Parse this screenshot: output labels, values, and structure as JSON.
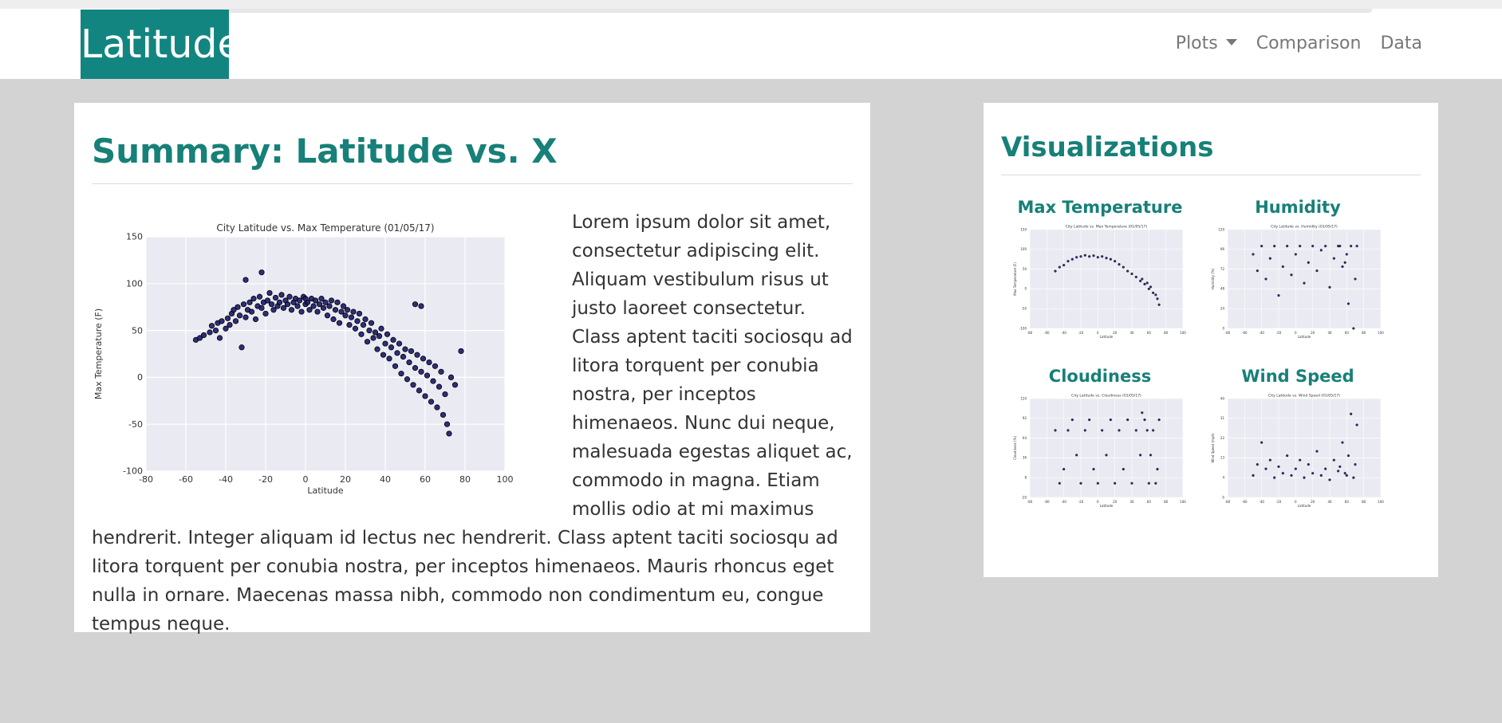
{
  "nav": {
    "brand": "Latitude",
    "items": [
      {
        "label": "Plots",
        "dropdown": true
      },
      {
        "label": "Comparison"
      },
      {
        "label": "Data"
      }
    ]
  },
  "summary": {
    "title": "Summary: Latitude vs. X",
    "paragraph": "Lorem ipsum dolor sit amet, consectetur adipiscing elit. Aliquam vestibulum risus ut justo laoreet consectetur. Class aptent taciti sociosqu ad litora torquent per conubia nostra, per inceptos himenaeos. Nunc dui neque, malesuada egestas aliquet ac, commodo in magna. Etiam mollis odio at mi maximus hendrerit. Integer aliquam id lectus nec hendrerit. Class aptent taciti sociosqu ad litora torquent per conubia nostra, per inceptos himenaeos. Mauris rhoncus eget nulla in ornare. Maecenas massa nibh, commodo non condimentum eu, congue tempus neque."
  },
  "visualizations": {
    "title": "Visualizations",
    "items": [
      {
        "label": "Max Temperature"
      },
      {
        "label": "Humidity"
      },
      {
        "label": "Cloudiness"
      },
      {
        "label": "Wind Speed"
      }
    ]
  },
  "colors": {
    "accent": "#178078",
    "brand_bg": "#138580",
    "dot": "#1a1a6e",
    "plot_bg": "#eaeaf2"
  },
  "chart_data": [
    {
      "type": "scatter",
      "title": "City Latitude vs. Max Temperature (01/05/17)",
      "xlabel": "Latitude",
      "ylabel": "Max Temperature (F)",
      "xlim": [
        -80,
        100
      ],
      "ylim": [
        -100,
        150
      ],
      "xticks": [
        -80,
        -60,
        -40,
        -20,
        0,
        20,
        40,
        60,
        80,
        100
      ],
      "yticks": [
        -100,
        -50,
        0,
        50,
        100,
        150
      ],
      "grid": true,
      "points": [
        [
          -55,
          40
        ],
        [
          -53,
          42
        ],
        [
          -51,
          45
        ],
        [
          -48,
          48
        ],
        [
          -47,
          55
        ],
        [
          -45,
          50
        ],
        [
          -44,
          58
        ],
        [
          -43,
          42
        ],
        [
          -42,
          60
        ],
        [
          -40,
          52
        ],
        [
          -39,
          63
        ],
        [
          -38,
          56
        ],
        [
          -37,
          68
        ],
        [
          -36,
          72
        ],
        [
          -35,
          60
        ],
        [
          -34,
          75
        ],
        [
          -33,
          66
        ],
        [
          -32,
          32
        ],
        [
          -31,
          78
        ],
        [
          -30,
          64
        ],
        [
          -29,
          72
        ],
        [
          -28,
          80
        ],
        [
          -27,
          70
        ],
        [
          -26,
          84
        ],
        [
          -25,
          62
        ],
        [
          -24,
          76
        ],
        [
          -23,
          86
        ],
        [
          -22,
          74
        ],
        [
          -21,
          80
        ],
        [
          -20,
          68
        ],
        [
          -19,
          82
        ],
        [
          -18,
          90
        ],
        [
          -17,
          78
        ],
        [
          -16,
          72
        ],
        [
          -15,
          85
        ],
        [
          -14,
          76
        ],
        [
          -13,
          80
        ],
        [
          -12,
          88
        ],
        [
          -11,
          74
        ],
        [
          -10,
          82
        ],
        [
          -9,
          78
        ],
        [
          -8,
          86
        ],
        [
          -7,
          72
        ],
        [
          -6,
          80
        ],
        [
          -5,
          84
        ],
        [
          -4,
          76
        ],
        [
          -3,
          82
        ],
        [
          -2,
          70
        ],
        [
          -1,
          86
        ],
        [
          0,
          78
        ],
        [
          1,
          80
        ],
        [
          2,
          72
        ],
        [
          3,
          84
        ],
        [
          4,
          76
        ],
        [
          5,
          82
        ],
        [
          6,
          70
        ],
        [
          7,
          78
        ],
        [
          8,
          84
        ],
        [
          9,
          74
        ],
        [
          10,
          80
        ],
        [
          11,
          66
        ],
        [
          12,
          76
        ],
        [
          13,
          82
        ],
        [
          14,
          62
        ],
        [
          15,
          72
        ],
        [
          16,
          80
        ],
        [
          17,
          58
        ],
        [
          18,
          70
        ],
        [
          19,
          76
        ],
        [
          20,
          66
        ],
        [
          21,
          72
        ],
        [
          22,
          56
        ],
        [
          23,
          64
        ],
        [
          24,
          70
        ],
        [
          25,
          52
        ],
        [
          26,
          60
        ],
        [
          27,
          68
        ],
        [
          28,
          46
        ],
        [
          29,
          56
        ],
        [
          30,
          62
        ],
        [
          31,
          38
        ],
        [
          32,
          50
        ],
        [
          33,
          58
        ],
        [
          34,
          42
        ],
        [
          35,
          48
        ],
        [
          36,
          30
        ],
        [
          37,
          44
        ],
        [
          38,
          52
        ],
        [
          39,
          24
        ],
        [
          40,
          36
        ],
        [
          41,
          46
        ],
        [
          42,
          20
        ],
        [
          43,
          32
        ],
        [
          44,
          40
        ],
        [
          45,
          12
        ],
        [
          46,
          26
        ],
        [
          47,
          36
        ],
        [
          48,
          4
        ],
        [
          49,
          22
        ],
        [
          50,
          30
        ],
        [
          51,
          -2
        ],
        [
          52,
          16
        ],
        [
          53,
          28
        ],
        [
          54,
          -8
        ],
        [
          55,
          10
        ],
        [
          56,
          24
        ],
        [
          57,
          -14
        ],
        [
          58,
          6
        ],
        [
          59,
          20
        ],
        [
          60,
          -20
        ],
        [
          61,
          2
        ],
        [
          62,
          16
        ],
        [
          63,
          -26
        ],
        [
          64,
          -4
        ],
        [
          65,
          12
        ],
        [
          66,
          -32
        ],
        [
          67,
          -10
        ],
        [
          68,
          6
        ],
        [
          69,
          -40
        ],
        [
          70,
          -18
        ],
        [
          71,
          -50
        ],
        [
          72,
          -60
        ],
        [
          73,
          0
        ],
        [
          75,
          -8
        ],
        [
          78,
          28
        ],
        [
          55,
          78
        ],
        [
          58,
          76
        ],
        [
          -22,
          112
        ],
        [
          -30,
          104
        ],
        [
          0,
          84
        ]
      ]
    },
    {
      "type": "scatter",
      "title": "City Latitude vs. Max Temperature (01/05/17)",
      "xlabel": "Latitude",
      "ylabel": "Max Temperature (F)",
      "xlim": [
        -80,
        100
      ],
      "ylim": [
        -100,
        150
      ],
      "grid": true,
      "points": [
        [
          -50,
          45
        ],
        [
          -45,
          55
        ],
        [
          -40,
          60
        ],
        [
          -35,
          70
        ],
        [
          -30,
          75
        ],
        [
          -25,
          80
        ],
        [
          -20,
          82
        ],
        [
          -15,
          85
        ],
        [
          -10,
          82
        ],
        [
          -5,
          84
        ],
        [
          0,
          80
        ],
        [
          5,
          82
        ],
        [
          10,
          78
        ],
        [
          15,
          75
        ],
        [
          20,
          70
        ],
        [
          25,
          62
        ],
        [
          30,
          55
        ],
        [
          35,
          45
        ],
        [
          40,
          38
        ],
        [
          45,
          30
        ],
        [
          50,
          20
        ],
        [
          55,
          12
        ],
        [
          60,
          0
        ],
        [
          65,
          -10
        ],
        [
          70,
          -25
        ],
        [
          72,
          -40
        ],
        [
          68,
          -15
        ],
        [
          62,
          5
        ],
        [
          58,
          15
        ],
        [
          52,
          25
        ]
      ]
    },
    {
      "type": "scatter",
      "title": "City Latitude vs. Humidity (01/05/17)",
      "xlabel": "Latitude",
      "ylabel": "Humidity (%)",
      "xlim": [
        -80,
        100
      ],
      "ylim": [
        0,
        120
      ],
      "grid": true,
      "points": [
        [
          -50,
          90
        ],
        [
          -45,
          70
        ],
        [
          -40,
          100
        ],
        [
          -35,
          60
        ],
        [
          -30,
          85
        ],
        [
          -25,
          100
        ],
        [
          -20,
          40
        ],
        [
          -15,
          75
        ],
        [
          -10,
          100
        ],
        [
          -5,
          65
        ],
        [
          0,
          90
        ],
        [
          5,
          100
        ],
        [
          10,
          55
        ],
        [
          15,
          80
        ],
        [
          20,
          100
        ],
        [
          25,
          70
        ],
        [
          30,
          95
        ],
        [
          35,
          100
        ],
        [
          40,
          50
        ],
        [
          45,
          85
        ],
        [
          50,
          100
        ],
        [
          55,
          75
        ],
        [
          60,
          90
        ],
        [
          65,
          100
        ],
        [
          70,
          60
        ],
        [
          72,
          100
        ],
        [
          68,
          0
        ],
        [
          62,
          30
        ],
        [
          58,
          80
        ],
        [
          52,
          100
        ]
      ]
    },
    {
      "type": "scatter",
      "title": "City Latitude vs. Cloudiness (01/05/17)",
      "xlabel": "Latitude",
      "ylabel": "Cloudiness (%)",
      "xlim": [
        -80,
        100
      ],
      "ylim": [
        -20,
        120
      ],
      "grid": true,
      "points": [
        [
          -50,
          75
        ],
        [
          -45,
          0
        ],
        [
          -40,
          20
        ],
        [
          -35,
          75
        ],
        [
          -30,
          90
        ],
        [
          -25,
          40
        ],
        [
          -20,
          0
        ],
        [
          -15,
          75
        ],
        [
          -10,
          90
        ],
        [
          -5,
          20
        ],
        [
          0,
          0
        ],
        [
          5,
          75
        ],
        [
          10,
          40
        ],
        [
          15,
          90
        ],
        [
          20,
          0
        ],
        [
          25,
          75
        ],
        [
          30,
          20
        ],
        [
          35,
          90
        ],
        [
          40,
          0
        ],
        [
          45,
          75
        ],
        [
          50,
          40
        ],
        [
          55,
          90
        ],
        [
          60,
          0
        ],
        [
          65,
          75
        ],
        [
          70,
          20
        ],
        [
          72,
          90
        ],
        [
          68,
          0
        ],
        [
          62,
          40
        ],
        [
          58,
          75
        ],
        [
          52,
          100
        ]
      ]
    },
    {
      "type": "scatter",
      "title": "City Latitude vs. Wind Speed (01/05/17)",
      "xlabel": "Latitude",
      "ylabel": "Wind Speed (mph)",
      "xlim": [
        -80,
        100
      ],
      "ylim": [
        -5,
        40
      ],
      "grid": true,
      "points": [
        [
          -50,
          5
        ],
        [
          -45,
          10
        ],
        [
          -40,
          20
        ],
        [
          -35,
          8
        ],
        [
          -30,
          12
        ],
        [
          -25,
          4
        ],
        [
          -20,
          9
        ],
        [
          -15,
          6
        ],
        [
          -10,
          14
        ],
        [
          -5,
          5
        ],
        [
          0,
          8
        ],
        [
          5,
          12
        ],
        [
          10,
          4
        ],
        [
          15,
          10
        ],
        [
          20,
          6
        ],
        [
          25,
          16
        ],
        [
          30,
          5
        ],
        [
          35,
          8
        ],
        [
          40,
          3
        ],
        [
          45,
          12
        ],
        [
          50,
          7
        ],
        [
          55,
          20
        ],
        [
          60,
          5
        ],
        [
          65,
          33
        ],
        [
          70,
          10
        ],
        [
          72,
          28
        ],
        [
          68,
          4
        ],
        [
          62,
          14
        ],
        [
          58,
          6
        ],
        [
          52,
          9
        ]
      ]
    }
  ]
}
